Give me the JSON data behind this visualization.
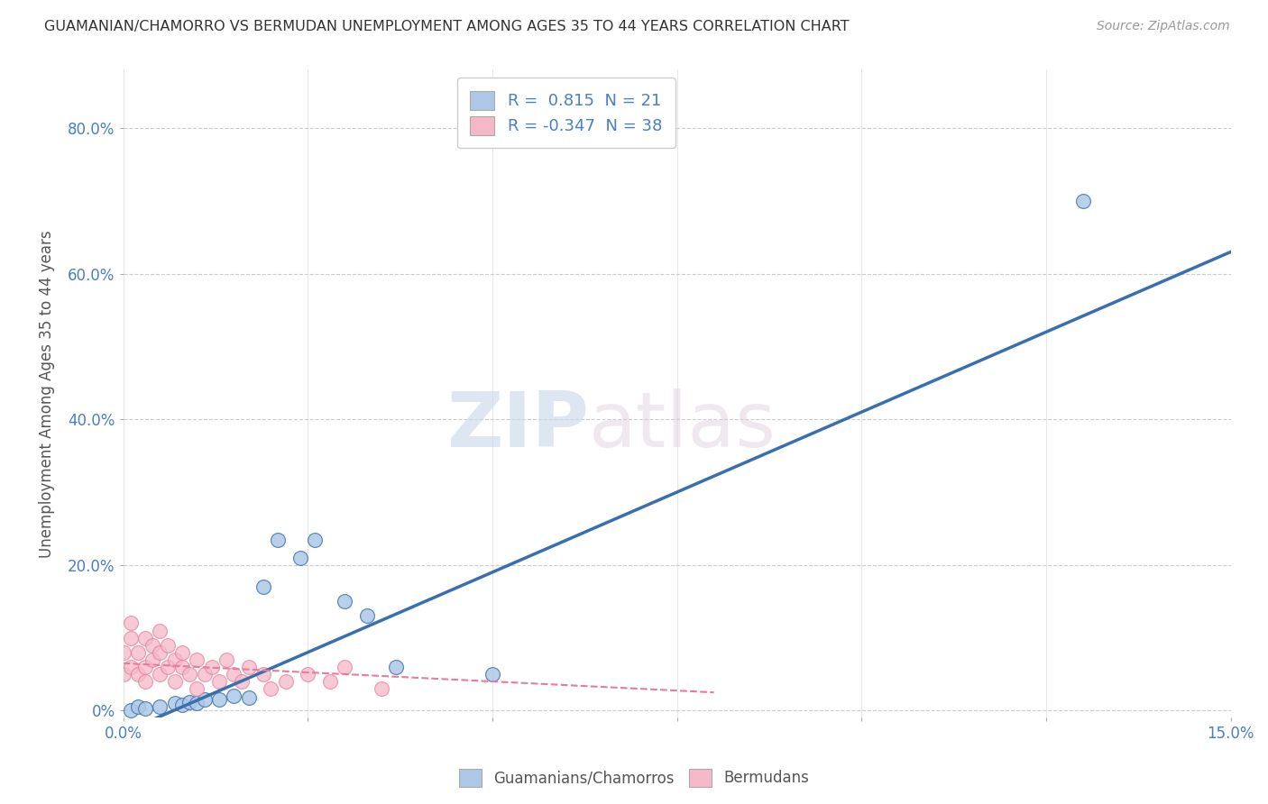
{
  "title": "GUAMANIAN/CHAMORRO VS BERMUDAN UNEMPLOYMENT AMONG AGES 35 TO 44 YEARS CORRELATION CHART",
  "source": "Source: ZipAtlas.com",
  "ylabel": "Unemployment Among Ages 35 to 44 years",
  "xlim": [
    0.0,
    0.15
  ],
  "ylim": [
    -0.01,
    0.88
  ],
  "xticks": [
    0.0,
    0.025,
    0.05,
    0.075,
    0.1,
    0.125,
    0.15
  ],
  "ytick_positions": [
    0.0,
    0.2,
    0.4,
    0.6,
    0.8
  ],
  "ytick_labels": [
    "0%",
    "20.0%",
    "40.0%",
    "60.0%",
    "80.0%"
  ],
  "xtick_labels": [
    "0.0%",
    "",
    "",
    "",
    "",
    "",
    "15.0%"
  ],
  "blue_R": 0.815,
  "blue_N": 21,
  "pink_R": -0.347,
  "pink_N": 38,
  "blue_color": "#adc8e6",
  "pink_color": "#f5b8c8",
  "blue_line_color": "#3a6fad",
  "pink_line_color": "#e87a9a",
  "watermark_zip": "ZIP",
  "watermark_atlas": "atlas",
  "blue_scatter_x": [
    0.001,
    0.002,
    0.003,
    0.005,
    0.007,
    0.008,
    0.009,
    0.01,
    0.011,
    0.013,
    0.015,
    0.017,
    0.019,
    0.021,
    0.024,
    0.026,
    0.03,
    0.033,
    0.037,
    0.05,
    0.13
  ],
  "blue_scatter_y": [
    0.001,
    0.005,
    0.003,
    0.005,
    0.01,
    0.008,
    0.012,
    0.01,
    0.015,
    0.015,
    0.02,
    0.018,
    0.17,
    0.235,
    0.21,
    0.235,
    0.15,
    0.13,
    0.06,
    0.05,
    0.7
  ],
  "pink_scatter_x": [
    0.0,
    0.0,
    0.001,
    0.001,
    0.001,
    0.002,
    0.002,
    0.003,
    0.003,
    0.003,
    0.004,
    0.004,
    0.005,
    0.005,
    0.005,
    0.006,
    0.006,
    0.007,
    0.007,
    0.008,
    0.008,
    0.009,
    0.01,
    0.01,
    0.011,
    0.012,
    0.013,
    0.014,
    0.015,
    0.016,
    0.017,
    0.019,
    0.02,
    0.022,
    0.025,
    0.028,
    0.03,
    0.035
  ],
  "pink_scatter_y": [
    0.05,
    0.08,
    0.1,
    0.06,
    0.12,
    0.05,
    0.08,
    0.06,
    0.1,
    0.04,
    0.07,
    0.09,
    0.05,
    0.08,
    0.11,
    0.06,
    0.09,
    0.07,
    0.04,
    0.06,
    0.08,
    0.05,
    0.07,
    0.03,
    0.05,
    0.06,
    0.04,
    0.07,
    0.05,
    0.04,
    0.06,
    0.05,
    0.03,
    0.04,
    0.05,
    0.04,
    0.06,
    0.03
  ]
}
